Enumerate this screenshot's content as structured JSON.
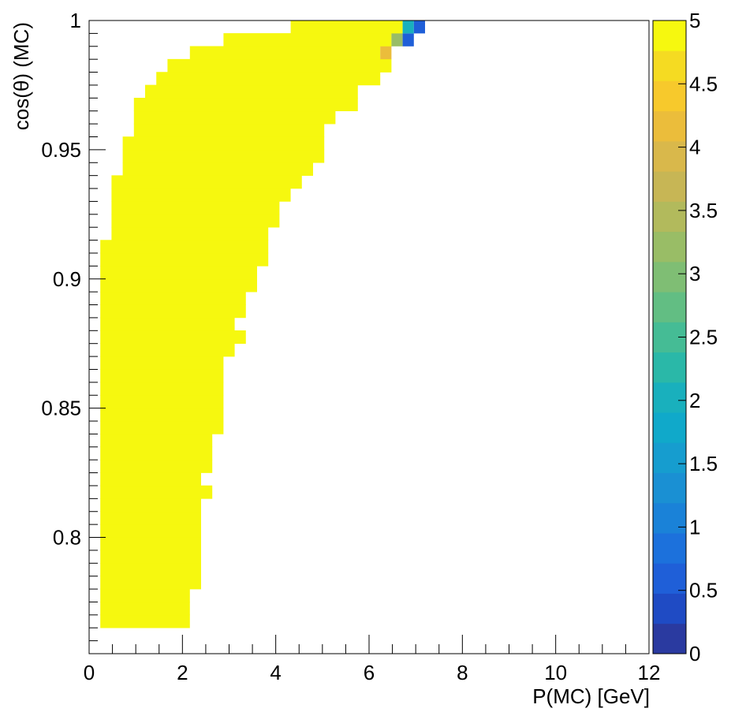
{
  "chart_data": {
    "type": "heatmap",
    "title": "",
    "xlabel": "P(MC) [GeV]",
    "ylabel": "cos(θ) (MC)",
    "xlim": [
      0,
      12
    ],
    "ylim": [
      0.755,
      1
    ],
    "x_ticks": [
      "0",
      "2",
      "4",
      "6",
      "8",
      "10",
      "12"
    ],
    "y_ticks": [
      "0.8",
      "0.85",
      "0.9",
      "0.95",
      "1"
    ],
    "colorbar": {
      "range": [
        0,
        5
      ],
      "ticks": [
        "0",
        "0.5",
        "1",
        "1.5",
        "2",
        "2.5",
        "3",
        "3.5",
        "4",
        "4.5",
        "5"
      ],
      "palette": [
        "#2a3aa0",
        "#1f4bc4",
        "#1f5fd8",
        "#1c71dc",
        "#1a82d8",
        "#1a90d3",
        "#169dcf",
        "#10a9ca",
        "#19b0bd",
        "#2ab8a8",
        "#45bc95",
        "#62be83",
        "#7fbe74",
        "#99bd66",
        "#b2ba5c",
        "#c7b655",
        "#d9b84b",
        "#ebbd3b",
        "#f7c92c",
        "#f5db22",
        "#f6f80f"
      ]
    },
    "bin_width_x": 0.24,
    "bin_height_y": 0.005,
    "fill_value": 5,
    "rows": [
      {
        "y": 0.765,
        "x_max": 2.16
      },
      {
        "y": 0.77,
        "x_max": 2.16
      },
      {
        "y": 0.775,
        "x_max": 2.16
      },
      {
        "y": 0.78,
        "x_max": 2.4
      },
      {
        "y": 0.785,
        "x_max": 2.4
      },
      {
        "y": 0.79,
        "x_max": 2.4
      },
      {
        "y": 0.795,
        "x_max": 2.4
      },
      {
        "y": 0.8,
        "x_max": 2.4
      },
      {
        "y": 0.805,
        "x_max": 2.4
      },
      {
        "y": 0.81,
        "x_max": 2.4
      },
      {
        "y": 0.815,
        "x_max": 2.64
      },
      {
        "y": 0.82,
        "x_max": 2.4
      },
      {
        "y": 0.825,
        "x_max": 2.64
      },
      {
        "y": 0.83,
        "x_max": 2.64
      },
      {
        "y": 0.835,
        "x_max": 2.64
      },
      {
        "y": 0.84,
        "x_max": 2.88
      },
      {
        "y": 0.845,
        "x_max": 2.88
      },
      {
        "y": 0.85,
        "x_max": 2.88
      },
      {
        "y": 0.855,
        "x_max": 2.88
      },
      {
        "y": 0.86,
        "x_max": 2.88
      },
      {
        "y": 0.865,
        "x_max": 2.88
      },
      {
        "y": 0.87,
        "x_max": 3.12
      },
      {
        "y": 0.875,
        "x_max": 3.36
      },
      {
        "y": 0.88,
        "x_max": 3.12
      },
      {
        "y": 0.885,
        "x_max": 3.36
      },
      {
        "y": 0.89,
        "x_max": 3.36
      },
      {
        "y": 0.895,
        "x_max": 3.6
      },
      {
        "y": 0.9,
        "x_max": 3.6
      },
      {
        "y": 0.905,
        "x_max": 3.84
      },
      {
        "y": 0.91,
        "x_max": 3.84,
        "x_min": 0.24
      },
      {
        "y": 0.915,
        "x_max": 3.84,
        "x_min": 0.48
      },
      {
        "y": 0.92,
        "x_max": 4.08,
        "x_min": 0.48
      },
      {
        "y": 0.925,
        "x_max": 4.08,
        "x_min": 0.48
      },
      {
        "y": 0.93,
        "x_max": 4.32,
        "x_min": 0.48
      },
      {
        "y": 0.935,
        "x_max": 4.56,
        "x_min": 0.48
      },
      {
        "y": 0.94,
        "x_max": 4.8,
        "x_min": 0.72
      },
      {
        "y": 0.945,
        "x_max": 5.04,
        "x_min": 0.72
      },
      {
        "y": 0.95,
        "x_max": 5.04,
        "x_min": 0.72
      },
      {
        "y": 0.955,
        "x_max": 5.04,
        "x_min": 0.96
      },
      {
        "y": 0.96,
        "x_max": 5.28,
        "x_min": 0.96
      },
      {
        "y": 0.965,
        "x_max": 5.76,
        "x_min": 0.96
      },
      {
        "y": 0.97,
        "x_max": 5.76,
        "x_min": 1.2
      },
      {
        "y": 0.975,
        "x_max": 6.24,
        "x_min": 1.44
      },
      {
        "y": 0.98,
        "x_max": 6.48,
        "x_min": 1.68
      },
      {
        "y": 0.985,
        "x_max": 6.24,
        "x_min": 2.16
      },
      {
        "y": 0.99,
        "x_max": 6.48,
        "x_min": 2.88
      },
      {
        "y": 0.995,
        "x_max": 6.72,
        "x_min": 4.32
      }
    ],
    "special_cells": [
      {
        "x": 6.24,
        "y": 0.985,
        "value": 4.2
      },
      {
        "x": 6.48,
        "y": 0.99,
        "value": 3.3
      },
      {
        "x": 6.72,
        "y": 0.99,
        "value": 0.6
      },
      {
        "x": 6.72,
        "y": 0.995,
        "value": 2.1
      },
      {
        "x": 6.96,
        "y": 0.995,
        "value": 0.6
      }
    ]
  }
}
